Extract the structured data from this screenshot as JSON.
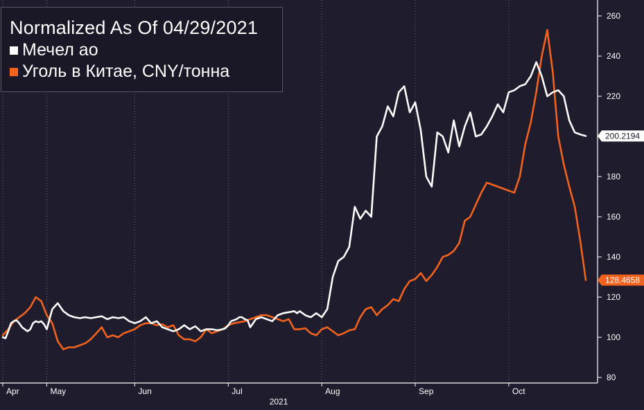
{
  "chart_data": {
    "type": "line",
    "title": "Normalized As Of 04/29/2021",
    "series": [
      {
        "name": "Мечел ао",
        "color": "#ffffff",
        "last_label": "200.2194",
        "x": [
          0,
          0.5,
          1,
          1.5,
          2,
          2.5,
          3,
          3.5,
          4,
          4.5,
          5,
          5.5,
          6,
          6.5,
          7,
          7.5,
          8,
          9,
          10,
          11,
          12,
          13,
          14,
          15,
          16,
          17,
          18,
          19,
          20,
          21,
          22,
          23,
          24,
          25,
          26,
          27,
          28,
          29,
          30,
          31,
          32,
          33,
          34,
          35,
          36,
          37,
          38,
          39,
          40,
          40.5,
          41,
          41.5,
          42,
          42.5,
          43,
          43.5,
          44,
          44.5,
          45,
          45.5,
          46,
          47,
          48,
          49,
          50,
          51,
          52,
          53,
          53.5,
          54,
          54.5,
          55,
          55.5,
          56,
          57,
          58,
          59,
          60,
          61,
          62,
          63,
          64,
          65,
          66,
          67,
          68,
          69,
          70,
          71,
          72,
          73,
          74,
          75,
          76,
          77,
          78,
          79,
          80,
          81,
          82,
          83,
          84,
          85,
          86,
          87
        ],
        "values": [
          100,
          99.5,
          103,
          107,
          108,
          108.5,
          107,
          105,
          104,
          103,
          104,
          107,
          108,
          107.5,
          108,
          106.5,
          104,
          114,
          117,
          113,
          111,
          110,
          109.5,
          110,
          109.5,
          110,
          110.5,
          109,
          110,
          109.5,
          110,
          108,
          107,
          108,
          110,
          107,
          108,
          105,
          104,
          103,
          104,
          106,
          104,
          105.5,
          103,
          104,
          104,
          103.5,
          104,
          104.5,
          106,
          108,
          108.5,
          109,
          110,
          110,
          109,
          108.5,
          105,
          107,
          109,
          110,
          109,
          108,
          111,
          112,
          112.5,
          113,
          112,
          113,
          112,
          111,
          110.5,
          110,
          112,
          110,
          114,
          130,
          138,
          140,
          145,
          165,
          159,
          163,
          160,
          200,
          205,
          215,
          210,
          222,
          225,
          212,
          217,
          203,
          180,
          175,
          202,
          200,
          192,
          208,
          195,
          205,
          212,
          200,
          201
        ],
        "values_tail": [
          205,
          210,
          216,
          212,
          222,
          223,
          225,
          226,
          230,
          237,
          230,
          220,
          222,
          223,
          220,
          208,
          202,
          201,
          200.2194
        ],
        "x_tail": [
          88,
          89,
          90,
          91,
          92,
          93,
          94,
          95,
          96,
          97,
          98,
          99,
          100,
          101,
          102,
          103,
          104,
          105,
          106
        ]
      },
      {
        "name": "Уголь в Китае, CNY/тонна",
        "color": "#f4631d",
        "last_label": "128.4658",
        "x": [
          0,
          1,
          2,
          3,
          4,
          5,
          6,
          7,
          8,
          9,
          10,
          11,
          12,
          13,
          14,
          15,
          16,
          17,
          18,
          19,
          20,
          21,
          22,
          23,
          24,
          25,
          26,
          27,
          28,
          29,
          30,
          31,
          32,
          33,
          34,
          35,
          36,
          37,
          38,
          39,
          40,
          41,
          42,
          43,
          44,
          45,
          46,
          47,
          48,
          49,
          50,
          51,
          52,
          53,
          54,
          55,
          56,
          57,
          58,
          59,
          60,
          61,
          62,
          63,
          64,
          65,
          66,
          67,
          68,
          69,
          70,
          71,
          72,
          73,
          74,
          75,
          76,
          77,
          78,
          79,
          80,
          81,
          82,
          83,
          84,
          85,
          86,
          87,
          88,
          89,
          90,
          91,
          92,
          93,
          94,
          95,
          96,
          97,
          98,
          99,
          100,
          101,
          102,
          103,
          104,
          105,
          106
        ],
        "values": [
          101,
          104,
          108,
          110,
          112,
          115,
          120,
          118,
          111,
          107,
          98,
          94,
          95,
          95,
          96,
          97,
          99,
          102,
          105,
          100,
          101,
          100,
          102,
          103,
          104,
          106,
          107,
          107,
          106,
          106.5,
          105,
          106,
          101,
          99,
          99,
          98,
          100,
          104,
          102,
          103,
          104,
          106,
          107,
          107.5,
          108,
          109,
          110,
          111,
          111,
          110,
          109,
          108,
          109,
          104,
          104,
          104.5,
          102,
          101,
          104,
          105,
          103,
          101,
          102,
          103.5,
          104,
          110,
          114,
          115,
          111,
          114,
          116,
          119,
          118,
          124,
          128,
          129,
          132,
          128,
          131,
          135,
          140,
          141,
          143,
          147,
          158,
          160,
          166,
          172,
          177,
          176,
          175,
          174,
          173,
          172,
          180,
          196,
          207,
          222,
          240,
          253,
          232,
          200,
          186,
          175,
          165,
          148,
          128.4658
        ]
      }
    ],
    "x_axis": {
      "tick_labels": [
        "Apr",
        "May",
        "Jun",
        "Jul",
        "Aug",
        "Sep",
        "Oct"
      ],
      "tick_x": [
        0,
        8,
        24,
        41,
        58,
        75,
        92
      ],
      "year_label": "2021",
      "year_x": 50,
      "xlim": [
        0,
        106
      ]
    },
    "y_axis": {
      "tick_labels": [
        "80",
        "100",
        "120",
        "140",
        "160",
        "180",
        "200",
        "220",
        "240",
        "260"
      ],
      "ticks": [
        80,
        100,
        120,
        140,
        160,
        180,
        200,
        220,
        240,
        260
      ],
      "ylim": [
        80,
        260
      ],
      "position": "right"
    },
    "colors": {
      "background": "#1f1c2e",
      "axis": "#ffffff",
      "coal": "#f4631d",
      "mechel": "#ffffff"
    },
    "legend": {
      "position": "top-left"
    }
  }
}
